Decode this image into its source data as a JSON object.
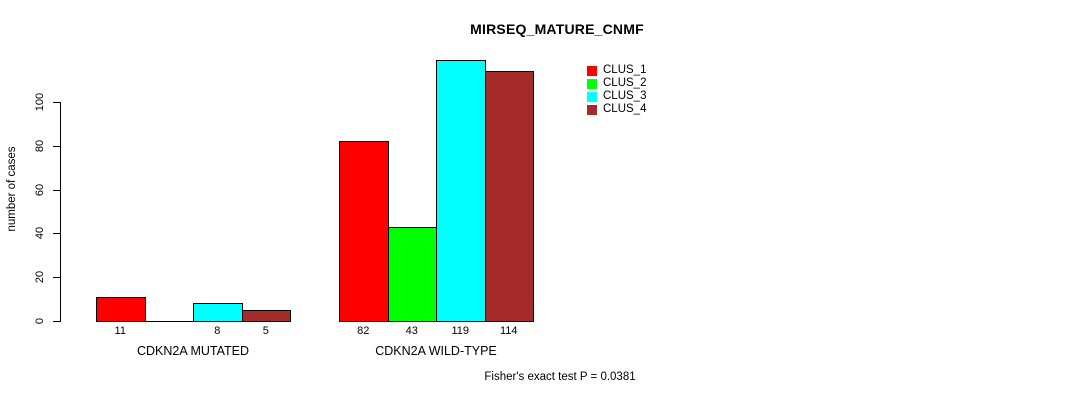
{
  "chart_data": {
    "type": "bar",
    "title": "MIRSEQ_MATURE_CNMF",
    "ylabel": "number of cases",
    "xlabel": "",
    "categories": [
      "CDKN2A MUTATED",
      "CDKN2A WILD-TYPE"
    ],
    "series": [
      {
        "name": "CLUS_1",
        "color": "#ff0000",
        "values": [
          11,
          82
        ],
        "labels": [
          "11",
          "82"
        ]
      },
      {
        "name": "CLUS_2",
        "color": "#00ff00",
        "values": [
          0,
          43
        ],
        "labels": [
          "",
          "43"
        ]
      },
      {
        "name": "CLUS_3",
        "color": "#00ffff",
        "values": [
          8,
          119
        ],
        "labels": [
          "8",
          "119"
        ]
      },
      {
        "name": "CLUS_4",
        "color": "#a52a2a",
        "values": [
          5,
          114
        ],
        "labels": [
          "5",
          "114"
        ]
      }
    ],
    "yticks": [
      0,
      20,
      40,
      60,
      80,
      100
    ],
    "axis_range": [
      0,
      100
    ],
    "grid": false,
    "legend_position": "top-right",
    "annotation": "Fisher's exact test P = 0.0381"
  }
}
